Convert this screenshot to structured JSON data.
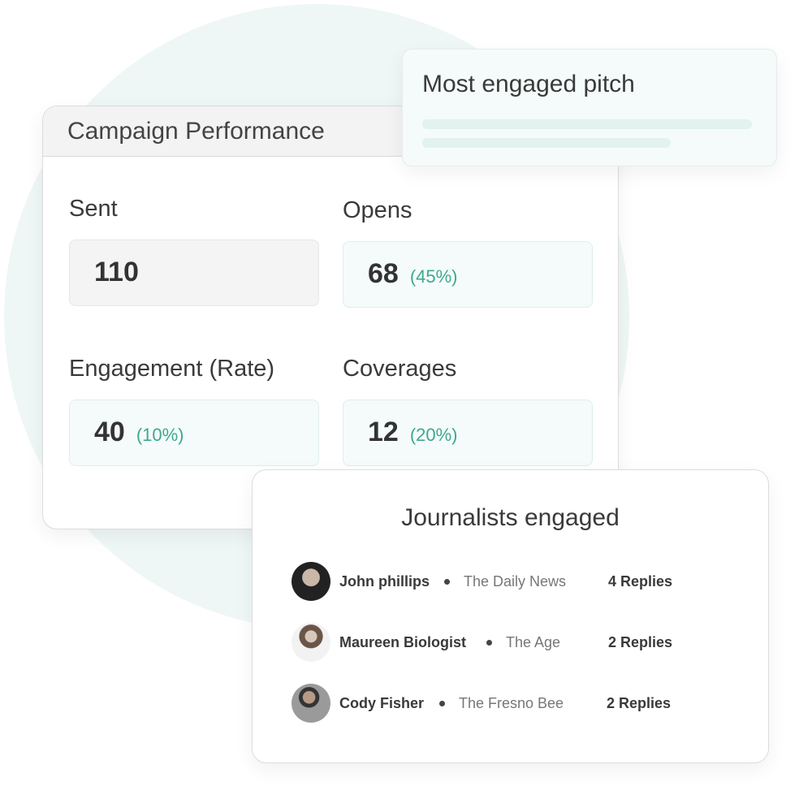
{
  "campaign": {
    "title": "Campaign Performance",
    "metrics": [
      {
        "label": "Sent",
        "value": "110",
        "percent": ""
      },
      {
        "label": "Opens",
        "value": "68",
        "percent": "(45%)"
      },
      {
        "label": "Engagement (Rate)",
        "value": "40",
        "percent": "(10%)"
      },
      {
        "label": "Coverages",
        "value": "12",
        "percent": "(20%)"
      }
    ]
  },
  "pitch": {
    "title": "Most engaged pitch"
  },
  "journalists": {
    "title": "Journalists engaged",
    "items": [
      {
        "name": "John phillips",
        "outlet": "The Daily News",
        "replies": "4 Replies"
      },
      {
        "name": "Maureen Biologist",
        "outlet": "The Age",
        "replies": "2 Replies"
      },
      {
        "name": "Cody Fisher",
        "outlet": "The Fresno Bee",
        "replies": "2 Replies"
      }
    ]
  },
  "colors": {
    "accent": "#3fa88d",
    "background_circle": "#eef7f5"
  }
}
